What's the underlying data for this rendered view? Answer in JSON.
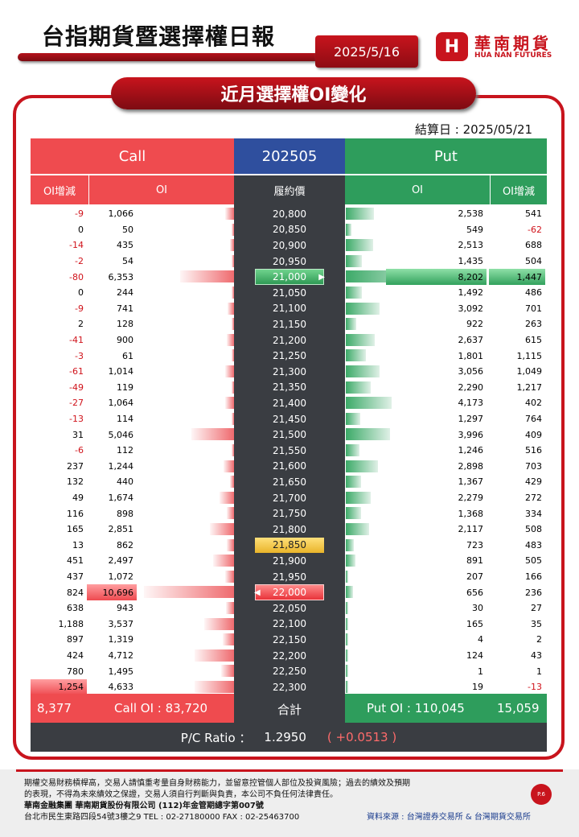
{
  "header": {
    "title": "台指期貨暨選擇權日報",
    "date": "2025/5/16",
    "logo_badge": "H",
    "logo_cn": "華南期貨",
    "logo_en": "HUA NAN FUTURES"
  },
  "section_title": "近月選擇權OI變化",
  "settlement": "結算日 : 2025/05/21",
  "table": {
    "call_label": "Call",
    "month_label": "202505",
    "put_label": "Put",
    "col_call_oi_change": "OI增減",
    "col_call_oi": "OI",
    "col_strike": "履約價",
    "col_put_oi": "OI",
    "col_put_oi_change": "OI增減",
    "rows": [
      {
        "call_chg": "-9",
        "call_oi": "1,066",
        "strike": "20,800",
        "put_oi": "2,538",
        "put_chg": "541",
        "cv": 1066,
        "pv": 2538
      },
      {
        "call_chg": "0",
        "call_oi": "50",
        "strike": "20,850",
        "put_oi": "549",
        "put_chg": "-62",
        "cv": 50,
        "pv": 549
      },
      {
        "call_chg": "-14",
        "call_oi": "435",
        "strike": "20,900",
        "put_oi": "2,513",
        "put_chg": "688",
        "cv": 435,
        "pv": 2513
      },
      {
        "call_chg": "-2",
        "call_oi": "54",
        "strike": "20,950",
        "put_oi": "1,435",
        "put_chg": "504",
        "cv": 54,
        "pv": 1435
      },
      {
        "call_chg": "-80",
        "call_oi": "6,353",
        "strike": "21,000",
        "put_oi": "8,202",
        "put_chg": "1,447",
        "cv": 6353,
        "pv": 8202,
        "hl": "green",
        "mark": "▶"
      },
      {
        "call_chg": "0",
        "call_oi": "244",
        "strike": "21,050",
        "put_oi": "1,492",
        "put_chg": "486",
        "cv": 244,
        "pv": 1492
      },
      {
        "call_chg": "-9",
        "call_oi": "741",
        "strike": "21,100",
        "put_oi": "3,092",
        "put_chg": "701",
        "cv": 741,
        "pv": 3092
      },
      {
        "call_chg": "2",
        "call_oi": "128",
        "strike": "21,150",
        "put_oi": "922",
        "put_chg": "263",
        "cv": 128,
        "pv": 922
      },
      {
        "call_chg": "-41",
        "call_oi": "900",
        "strike": "21,200",
        "put_oi": "2,637",
        "put_chg": "615",
        "cv": 900,
        "pv": 2637
      },
      {
        "call_chg": "-3",
        "call_oi": "61",
        "strike": "21,250",
        "put_oi": "1,801",
        "put_chg": "1,115",
        "cv": 61,
        "pv": 1801
      },
      {
        "call_chg": "-61",
        "call_oi": "1,014",
        "strike": "21,300",
        "put_oi": "3,056",
        "put_chg": "1,049",
        "cv": 1014,
        "pv": 3056
      },
      {
        "call_chg": "-49",
        "call_oi": "119",
        "strike": "21,350",
        "put_oi": "2,290",
        "put_chg": "1,217",
        "cv": 119,
        "pv": 2290
      },
      {
        "call_chg": "-27",
        "call_oi": "1,064",
        "strike": "21,400",
        "put_oi": "4,173",
        "put_chg": "402",
        "cv": 1064,
        "pv": 4173
      },
      {
        "call_chg": "-13",
        "call_oi": "114",
        "strike": "21,450",
        "put_oi": "1,297",
        "put_chg": "764",
        "cv": 114,
        "pv": 1297
      },
      {
        "call_chg": "31",
        "call_oi": "5,046",
        "strike": "21,500",
        "put_oi": "3,996",
        "put_chg": "409",
        "cv": 5046,
        "pv": 3996
      },
      {
        "call_chg": "-6",
        "call_oi": "112",
        "strike": "21,550",
        "put_oi": "1,246",
        "put_chg": "516",
        "cv": 112,
        "pv": 1246
      },
      {
        "call_chg": "237",
        "call_oi": "1,244",
        "strike": "21,600",
        "put_oi": "2,898",
        "put_chg": "703",
        "cv": 1244,
        "pv": 2898
      },
      {
        "call_chg": "132",
        "call_oi": "440",
        "strike": "21,650",
        "put_oi": "1,367",
        "put_chg": "429",
        "cv": 440,
        "pv": 1367
      },
      {
        "call_chg": "49",
        "call_oi": "1,674",
        "strike": "21,700",
        "put_oi": "2,279",
        "put_chg": "272",
        "cv": 1674,
        "pv": 2279
      },
      {
        "call_chg": "116",
        "call_oi": "898",
        "strike": "21,750",
        "put_oi": "1,368",
        "put_chg": "334",
        "cv": 898,
        "pv": 1368
      },
      {
        "call_chg": "165",
        "call_oi": "2,851",
        "strike": "21,800",
        "put_oi": "2,117",
        "put_chg": "508",
        "cv": 2851,
        "pv": 2117
      },
      {
        "call_chg": "13",
        "call_oi": "862",
        "strike": "21,850",
        "put_oi": "723",
        "put_chg": "483",
        "cv": 862,
        "pv": 723,
        "hl": "yellow"
      },
      {
        "call_chg": "451",
        "call_oi": "2,497",
        "strike": "21,900",
        "put_oi": "891",
        "put_chg": "505",
        "cv": 2497,
        "pv": 891
      },
      {
        "call_chg": "437",
        "call_oi": "1,072",
        "strike": "21,950",
        "put_oi": "207",
        "put_chg": "166",
        "cv": 1072,
        "pv": 207
      },
      {
        "call_chg": "824",
        "call_oi": "10,696",
        "strike": "22,000",
        "put_oi": "656",
        "put_chg": "236",
        "cv": 10696,
        "pv": 656,
        "hl": "red",
        "mark": "◀"
      },
      {
        "call_chg": "638",
        "call_oi": "943",
        "strike": "22,050",
        "put_oi": "30",
        "put_chg": "27",
        "cv": 943,
        "pv": 30
      },
      {
        "call_chg": "1,188",
        "call_oi": "3,537",
        "strike": "22,100",
        "put_oi": "165",
        "put_chg": "35",
        "cv": 3537,
        "pv": 165
      },
      {
        "call_chg": "897",
        "call_oi": "1,319",
        "strike": "22,150",
        "put_oi": "4",
        "put_chg": "2",
        "cv": 1319,
        "pv": 4
      },
      {
        "call_chg": "424",
        "call_oi": "4,712",
        "strike": "22,200",
        "put_oi": "124",
        "put_chg": "43",
        "cv": 4712,
        "pv": 124
      },
      {
        "call_chg": "780",
        "call_oi": "1,495",
        "strike": "22,250",
        "put_oi": "1",
        "put_chg": "1",
        "cv": 1495,
        "pv": 1
      },
      {
        "call_chg": "1,254",
        "call_oi": "4,633",
        "strike": "22,300",
        "put_oi": "19",
        "put_chg": "-13",
        "cv": 4633,
        "pv": 19
      }
    ],
    "total_call_chg": "8,377",
    "total_call_oi": "Call OI : 83,720",
    "total_label": "合計",
    "total_put_oi": "Put OI : 110,045",
    "total_put_chg": "15,059",
    "pc_ratio_label": "P/C Ratio ：",
    "pc_ratio_value": "1.2950",
    "pc_ratio_change": "( +0.0513 )"
  },
  "footer": {
    "line1": "期權交易財務槓桿高，交易人請慎重考量自身財務能力，並留意控管個人部位及投資風險；過去的績效及預期",
    "line2": "的表現，不得為未來績效之保證，交易人須自行判斷與負責，本公司不負任何法律責任。",
    "line3": "華南金融集團 華南期貨股份有限公司 (112)年金管期總字第007號",
    "line4": "台北市民生東路四段54號3樓之9  TEL : 02-27180000  FAX : 02-25463700",
    "page": "P.6",
    "source": "資料來源 : 台灣證券交易所 & 台灣期貨交易所"
  },
  "colors": {
    "brand_red": "#c8141d",
    "call_red": "#ef4b4f",
    "put_green": "#2e9d5c",
    "dark": "#3a3d42"
  }
}
